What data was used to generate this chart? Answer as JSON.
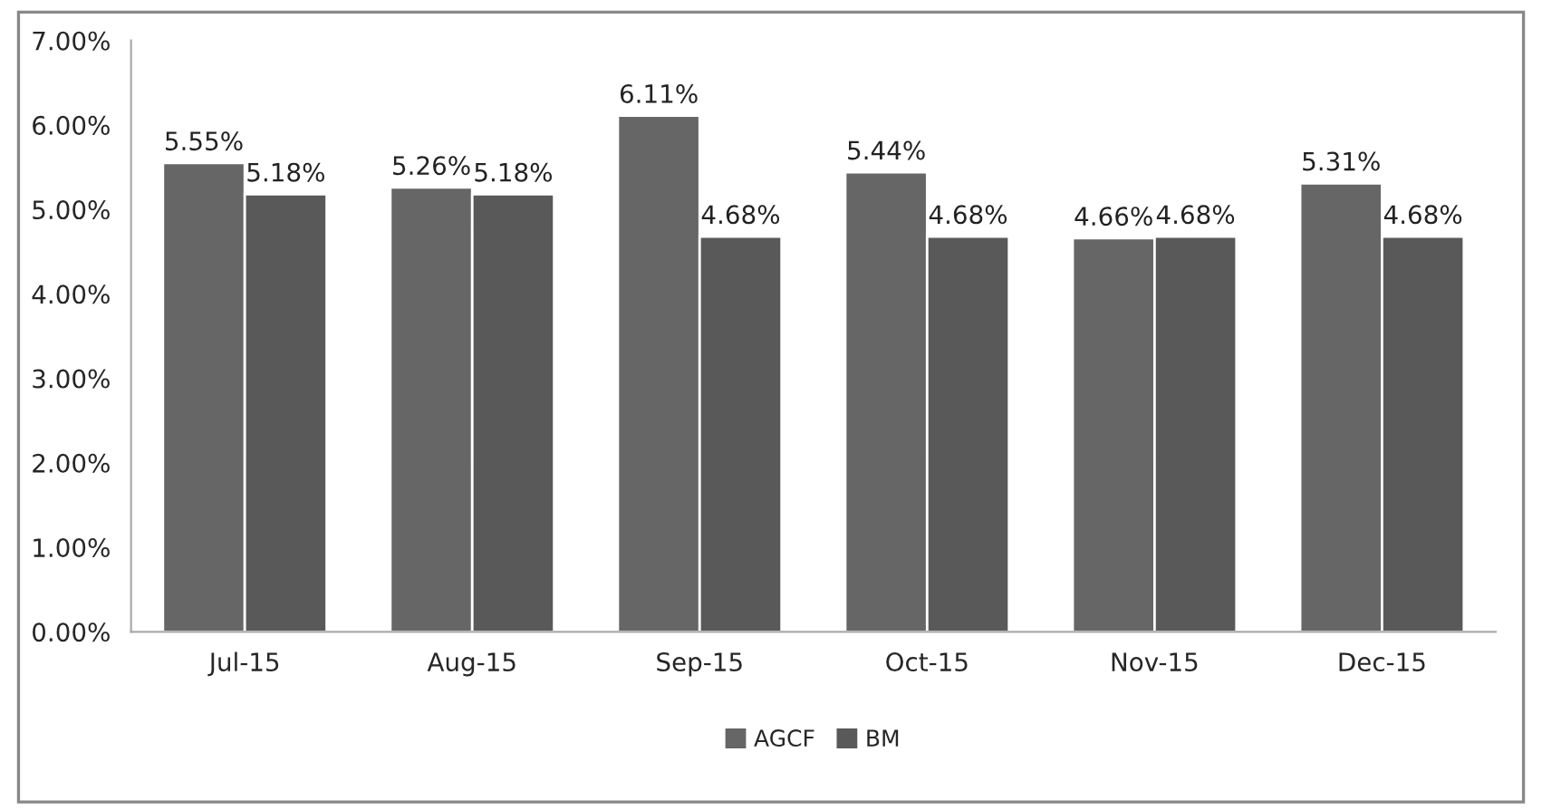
{
  "chart_data": {
    "type": "bar",
    "categories": [
      "Jul-15",
      "Aug-15",
      "Sep-15",
      "Oct-15",
      "Nov-15",
      "Dec-15"
    ],
    "series": [
      {
        "name": "AGCF",
        "color": "#666666",
        "values": [
          5.55,
          5.26,
          6.11,
          5.44,
          4.66,
          5.31
        ],
        "value_labels": [
          "5.55%",
          "5.26%",
          "6.11%",
          "5.44%",
          "4.66%",
          "5.31%"
        ]
      },
      {
        "name": "BM",
        "color": "#595959",
        "values": [
          5.18,
          5.18,
          4.68,
          4.68,
          4.68,
          4.68
        ],
        "value_labels": [
          "5.18%",
          "5.18%",
          "4.68%",
          "4.68%",
          "4.68%",
          "4.68%"
        ]
      }
    ],
    "ylim": [
      0,
      7
    ],
    "yticks": [
      {
        "value": 0,
        "label": "0.00%"
      },
      {
        "value": 1,
        "label": "1.00%"
      },
      {
        "value": 2,
        "label": "2.00%"
      },
      {
        "value": 3,
        "label": "3.00%"
      },
      {
        "value": 4,
        "label": "4.00%"
      },
      {
        "value": 5,
        "label": "5.00%"
      },
      {
        "value": 6,
        "label": "6.00%"
      },
      {
        "value": 7,
        "label": "7.00%"
      }
    ],
    "grid": false,
    "legend": "bottom"
  }
}
